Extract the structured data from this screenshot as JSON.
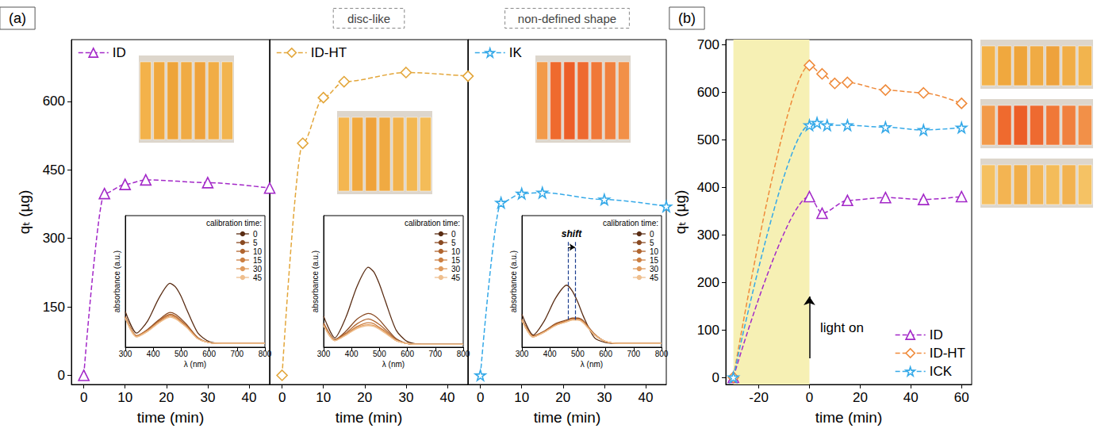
{
  "chart_data": [
    {
      "type": "line",
      "panel_label": "(a)",
      "x_label": "time (min)",
      "y_label": "qₜ (µg)",
      "xlim": [
        -3,
        45
      ],
      "xticks": [
        0,
        10,
        20,
        30,
        40
      ],
      "ylim": [
        -20,
        735
      ],
      "yticks": [
        0,
        150,
        300,
        450,
        600
      ],
      "grid": false,
      "legend": "top-left",
      "series": [
        {
          "name": "ID",
          "color": "#a328c8",
          "marker": "triangle",
          "line_style": "dashed",
          "x": [
            0,
            5,
            10,
            15,
            30,
            45
          ],
          "values": [
            0,
            398,
            418,
            428,
            422,
            410
          ]
        }
      ],
      "inset": {
        "type": "line",
        "x_label": "λ (nm)",
        "y_label": "absorbance (a.u.)",
        "xlim": [
          300,
          800
        ],
        "xticks": [
          300,
          400,
          500,
          600,
          700,
          800
        ],
        "ylim": [
          0,
          1.4
        ],
        "yticks": [],
        "tick_labels": "x",
        "grid": false,
        "legend": "top-right",
        "legend_title": "calibration time:",
        "x": [
          300,
          340,
          380,
          420,
          460,
          480,
          500,
          520,
          560,
          600,
          650,
          700,
          800
        ],
        "series": [
          {
            "name": "0",
            "color": "#5a2d14",
            "values": [
              0.38,
              0.15,
              0.28,
              0.52,
              0.68,
              0.64,
              0.54,
              0.4,
              0.15,
              0.06,
              0.04,
              0.04,
              0.04
            ]
          },
          {
            "name": "5",
            "color": "#8a4a22",
            "values": [
              0.33,
              0.12,
              0.19,
              0.29,
              0.37,
              0.35,
              0.3,
              0.24,
              0.1,
              0.05,
              0.04,
              0.04,
              0.04
            ]
          },
          {
            "name": "10",
            "color": "#b0652f",
            "values": [
              0.32,
              0.12,
              0.18,
              0.28,
              0.35,
              0.33,
              0.28,
              0.23,
              0.1,
              0.05,
              0.04,
              0.04,
              0.04
            ]
          },
          {
            "name": "15",
            "color": "#cc7f42",
            "values": [
              0.32,
              0.12,
              0.18,
              0.27,
              0.34,
              0.32,
              0.27,
              0.22,
              0.09,
              0.05,
              0.04,
              0.04,
              0.04
            ]
          },
          {
            "name": "30",
            "color": "#e09b5e",
            "values": [
              0.31,
              0.11,
              0.17,
              0.26,
              0.33,
              0.31,
              0.26,
              0.21,
              0.09,
              0.05,
              0.04,
              0.04,
              0.04
            ]
          },
          {
            "name": "45",
            "color": "#efbf8e",
            "values": [
              0.31,
              0.11,
              0.17,
              0.26,
              0.32,
              0.3,
              0.26,
              0.21,
              0.09,
              0.05,
              0.04,
              0.04,
              0.04
            ]
          }
        ]
      }
    },
    {
      "type": "line",
      "header": "disc-like",
      "x_label": "time (min)",
      "tick_labels": "x",
      "xlim": [
        -3,
        45
      ],
      "xticks": [
        0,
        10,
        20,
        30,
        40
      ],
      "ylim": [
        -20,
        735
      ],
      "yticks": [
        0,
        150,
        300,
        450,
        600
      ],
      "grid": false,
      "legend": "top-left",
      "series": [
        {
          "name": "ID-HT",
          "color": "#e3a63a",
          "marker": "diamond",
          "line_style": "dashed",
          "x": [
            0,
            5,
            10,
            15,
            30,
            45
          ],
          "values": [
            0,
            508,
            608,
            643,
            663,
            655
          ]
        }
      ],
      "inset": {
        "type": "line",
        "x_label": "λ (nm)",
        "y_label": "absorbance (a.u.)",
        "xlim": [
          300,
          800
        ],
        "xticks": [
          300,
          400,
          500,
          600,
          700,
          800
        ],
        "ylim": [
          0,
          1.4
        ],
        "yticks": [],
        "tick_labels": "x",
        "grid": false,
        "legend": "top-right",
        "legend_title": "calibration time:",
        "x": [
          300,
          340,
          380,
          420,
          460,
          480,
          500,
          520,
          560,
          600,
          650,
          700,
          800
        ],
        "series": [
          {
            "name": "0",
            "color": "#5a2d14",
            "values": [
              0.33,
              0.1,
              0.32,
              0.65,
              0.85,
              0.8,
              0.67,
              0.5,
              0.18,
              0.06,
              0.03,
              0.03,
              0.03
            ]
          },
          {
            "name": "5",
            "color": "#8a4a22",
            "values": [
              0.26,
              0.08,
              0.17,
              0.3,
              0.36,
              0.34,
              0.29,
              0.22,
              0.09,
              0.04,
              0.03,
              0.03,
              0.03
            ]
          },
          {
            "name": "10",
            "color": "#b0652f",
            "values": [
              0.25,
              0.08,
              0.15,
              0.25,
              0.3,
              0.28,
              0.24,
              0.19,
              0.08,
              0.04,
              0.03,
              0.03,
              0.03
            ]
          },
          {
            "name": "15",
            "color": "#cc7f42",
            "values": [
              0.24,
              0.07,
              0.14,
              0.22,
              0.26,
              0.25,
              0.21,
              0.17,
              0.07,
              0.04,
              0.03,
              0.03,
              0.03
            ]
          },
          {
            "name": "30",
            "color": "#e09b5e",
            "values": [
              0.23,
              0.07,
              0.13,
              0.21,
              0.24,
              0.23,
              0.2,
              0.16,
              0.07,
              0.04,
              0.03,
              0.03,
              0.03
            ]
          },
          {
            "name": "45",
            "color": "#efbf8e",
            "values": [
              0.23,
              0.07,
              0.13,
              0.2,
              0.23,
              0.22,
              0.19,
              0.15,
              0.07,
              0.04,
              0.03,
              0.03,
              0.03
            ]
          }
        ]
      }
    },
    {
      "type": "line",
      "header": "non-defined shape",
      "x_label": "time (min)",
      "tick_labels": "x",
      "xlim": [
        -3,
        45
      ],
      "xticks": [
        0,
        10,
        20,
        30,
        40
      ],
      "ylim": [
        -20,
        735
      ],
      "yticks": [
        0,
        150,
        300,
        450,
        600
      ],
      "grid": false,
      "legend": "top-left",
      "series": [
        {
          "name": "IK",
          "color": "#35a9e8",
          "marker": "star",
          "line_style": "dashed",
          "x": [
            0,
            5,
            10,
            15,
            30,
            45
          ],
          "values": [
            0,
            378,
            398,
            400,
            385,
            370
          ]
        }
      ],
      "inset": {
        "type": "line",
        "x_label": "λ (nm)",
        "y_label": "absorbance (a.u.)",
        "xlim": [
          300,
          800
        ],
        "xticks": [
          300,
          400,
          500,
          600,
          700,
          800
        ],
        "ylim": [
          0,
          1.4
        ],
        "yticks": [],
        "tick_labels": "x",
        "grid": false,
        "legend": "top-right",
        "legend_title": "calibration time:",
        "shift": {
          "text": "shift",
          "x": [
            465,
            490
          ]
        },
        "x": [
          300,
          340,
          380,
          420,
          460,
          480,
          500,
          520,
          560,
          600,
          650,
          700,
          800
        ],
        "series": [
          {
            "name": "0",
            "color": "#5a2d14",
            "values": [
              0.35,
              0.13,
              0.28,
              0.52,
              0.66,
              0.6,
              0.48,
              0.33,
              0.1,
              0.05,
              0.04,
              0.04,
              0.04
            ]
          },
          {
            "name": "5",
            "color": "#8a4a22",
            "values": [
              0.3,
              0.12,
              0.17,
              0.25,
              0.29,
              0.31,
              0.31,
              0.28,
              0.14,
              0.06,
              0.04,
              0.04,
              0.04
            ]
          },
          {
            "name": "10",
            "color": "#b0652f",
            "values": [
              0.29,
              0.12,
              0.17,
              0.24,
              0.28,
              0.3,
              0.3,
              0.27,
              0.14,
              0.06,
              0.04,
              0.04,
              0.04
            ]
          },
          {
            "name": "15",
            "color": "#cc7f42",
            "values": [
              0.29,
              0.11,
              0.16,
              0.24,
              0.28,
              0.3,
              0.3,
              0.27,
              0.13,
              0.06,
              0.04,
              0.04,
              0.04
            ]
          },
          {
            "name": "30",
            "color": "#e09b5e",
            "values": [
              0.29,
              0.11,
              0.16,
              0.23,
              0.27,
              0.29,
              0.29,
              0.26,
              0.13,
              0.06,
              0.04,
              0.04,
              0.04
            ]
          },
          {
            "name": "45",
            "color": "#efbf8e",
            "values": [
              0.28,
              0.11,
              0.16,
              0.23,
              0.27,
              0.29,
              0.29,
              0.26,
              0.13,
              0.06,
              0.04,
              0.04,
              0.04
            ]
          }
        ]
      }
    },
    {
      "type": "line",
      "panel_label": "(b)",
      "x_label": "time (min)",
      "y_label": "qₜ (µg)",
      "xlim": [
        -33,
        64
      ],
      "xticks": [
        -20,
        0,
        20,
        40,
        60
      ],
      "ylim": [
        -15,
        710
      ],
      "yticks": [
        0,
        100,
        200,
        300,
        400,
        500,
        600,
        700
      ],
      "grid": false,
      "legend": "bottom-right",
      "shaded": [
        -30,
        0
      ],
      "annotations": [
        {
          "text": "light on",
          "x": 3,
          "y": 105,
          "arrow_x": 0,
          "arrow_y": [
            40,
            170
          ]
        }
      ],
      "series": [
        {
          "name": "ID",
          "color": "#a328c8",
          "marker": "triangle",
          "line_style": "dashed",
          "x": [
            -30,
            0,
            5,
            15,
            30,
            45,
            60
          ],
          "values": [
            0,
            380,
            345,
            372,
            378,
            374,
            380
          ]
        },
        {
          "name": "ID-HT",
          "color": "#ef8a3a",
          "marker": "diamond",
          "line_style": "dashed",
          "x": [
            -30,
            0,
            5,
            10,
            15,
            30,
            45,
            60
          ],
          "values": [
            0,
            656,
            638,
            618,
            620,
            604,
            598,
            576
          ]
        },
        {
          "name": "ICK",
          "color": "#35a9e8",
          "marker": "star",
          "line_style": "dashed",
          "x": [
            -30,
            0,
            3,
            7,
            15,
            30,
            45,
            60
          ],
          "values": [
            0,
            530,
            535,
            530,
            530,
            526,
            520,
            525
          ]
        }
      ]
    }
  ]
}
